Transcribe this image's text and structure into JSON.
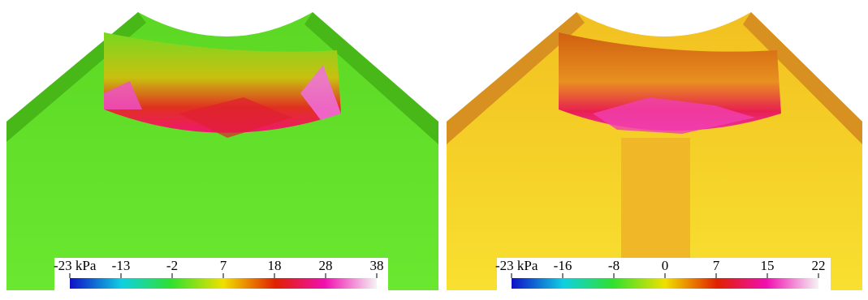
{
  "panels": [
    {
      "colorbar": {
        "ticks": [
          "-23 kPa",
          "-13",
          "-2",
          "7",
          "18",
          "28",
          "38"
        ]
      }
    },
    {
      "colorbar": {
        "ticks": [
          "-23 kPa",
          "-16",
          "-8",
          "0",
          "7",
          "15",
          "22"
        ]
      }
    }
  ]
}
